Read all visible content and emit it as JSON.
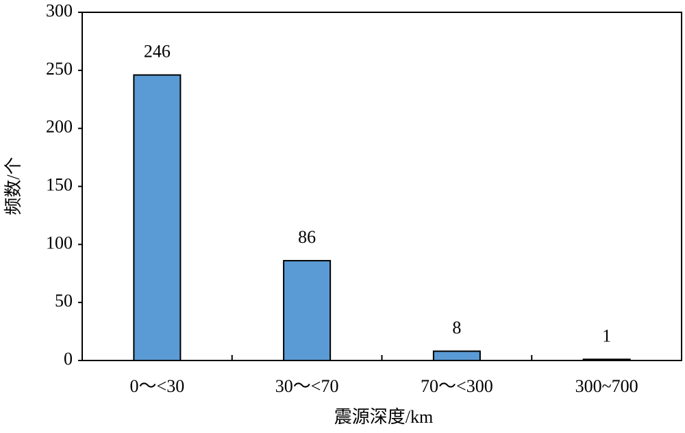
{
  "chart_data": {
    "type": "bar",
    "x_label": "震源深度/km",
    "y_label": "频数/个",
    "categories": [
      "0～<30",
      "30～<70",
      "70～<300",
      "300~700"
    ],
    "values": [
      246,
      86,
      8,
      1
    ],
    "color": "#5b9bd5",
    "ylim": [
      0,
      300
    ],
    "yticks": [
      0,
      50,
      100,
      150,
      200,
      250,
      300
    ],
    "grid": false,
    "data_labels": true
  }
}
